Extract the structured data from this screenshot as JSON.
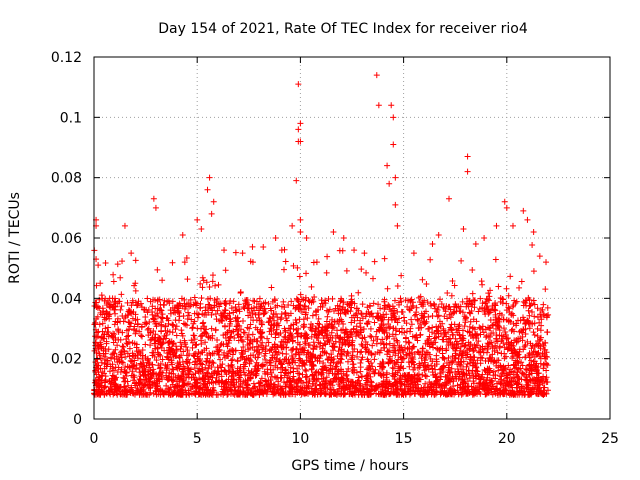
{
  "chart_data": {
    "type": "scatter",
    "title": "Day 154 of 2021, Rate Of TEC Index for receiver rio4",
    "xlabel": "GPS time / hours",
    "ylabel": "ROTI / TECUs",
    "xlim": [
      0,
      25
    ],
    "ylim": [
      0,
      0.12
    ],
    "x_ticks": [
      0,
      5,
      10,
      15,
      20,
      25
    ],
    "x_tick_labels": [
      "0",
      "5",
      "10",
      "15",
      "20",
      "25"
    ],
    "y_ticks": [
      0,
      0.02,
      0.04,
      0.06,
      0.08,
      0.1,
      0.12
    ],
    "y_tick_labels": [
      "0",
      "0.02",
      "0.04",
      "0.06",
      "0.08",
      "0.1",
      "0.12"
    ],
    "grid": true,
    "legend": "none",
    "marker": "plus",
    "series_color": "#ff0000",
    "series": [
      {
        "x": [
          0.1,
          0.1,
          0.1,
          0.2,
          0.3,
          0.4,
          0.9,
          1.5,
          1.8,
          2.0,
          2.9,
          3.0,
          3.3,
          4.3,
          4.4,
          5.0,
          5.2,
          5.5,
          5.6,
          5.7,
          5.8,
          6.3,
          7.2,
          7.7,
          8.2,
          8.8,
          9.1,
          9.6,
          9.8,
          9.9,
          9.9,
          9.9,
          10.0,
          10.0,
          10.0,
          10.0,
          10.3,
          10.8,
          11.6,
          12.1,
          12.6,
          13.1,
          13.7,
          13.8,
          14.2,
          14.3,
          14.4,
          14.5,
          14.5,
          14.6,
          14.6,
          14.7,
          15.5,
          16.4,
          16.7,
          17.2,
          17.9,
          18.1,
          18.1,
          18.5,
          18.9,
          19.5,
          19.9,
          20.0,
          20.3,
          20.8,
          21.0,
          21.3,
          21.6,
          21.9
        ],
        "y": [
          0.066,
          0.064,
          0.053,
          0.051,
          0.045,
          0.04,
          0.04,
          0.064,
          0.055,
          0.045,
          0.073,
          0.07,
          0.046,
          0.061,
          0.052,
          0.066,
          0.063,
          0.076,
          0.08,
          0.068,
          0.072,
          0.056,
          0.055,
          0.052,
          0.057,
          0.06,
          0.056,
          0.064,
          0.079,
          0.092,
          0.096,
          0.111,
          0.098,
          0.092,
          0.066,
          0.062,
          0.06,
          0.052,
          0.062,
          0.06,
          0.056,
          0.055,
          0.114,
          0.104,
          0.084,
          0.078,
          0.104,
          0.1,
          0.091,
          0.08,
          0.071,
          0.064,
          0.055,
          0.058,
          0.061,
          0.073,
          0.063,
          0.087,
          0.082,
          0.058,
          0.06,
          0.064,
          0.072,
          0.07,
          0.064,
          0.069,
          0.066,
          0.062,
          0.054,
          0.052
        ],
        "band_start_hour": 0,
        "band_end_hour": 22,
        "band_typical_low": 0.008,
        "band_typical_high": 0.04
      }
    ]
  }
}
